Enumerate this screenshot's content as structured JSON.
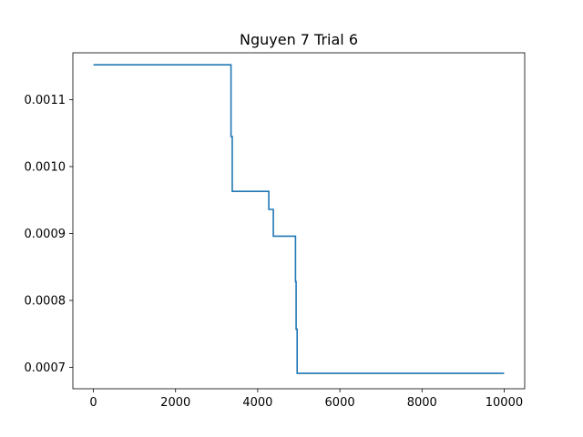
{
  "chart_data": {
    "type": "line",
    "title": "Nguyen 7 Trial 6",
    "xlabel": "",
    "ylabel": "",
    "xlim": [
      -500,
      10500
    ],
    "ylim": [
      0.000668,
      0.00117
    ],
    "x_ticks": [
      0,
      2000,
      4000,
      6000,
      8000,
      10000
    ],
    "x_tick_labels": [
      "0",
      "2000",
      "4000",
      "6000",
      "8000",
      "10000"
    ],
    "y_ticks": [
      0.0007,
      0.0008,
      0.0009,
      0.001,
      0.0011
    ],
    "y_tick_labels": [
      "0.0007",
      "0.0008",
      "0.0009",
      "0.0010",
      "0.0011"
    ],
    "grid": false,
    "series": [
      {
        "color": "#1f77b4",
        "x": [
          0,
          3350,
          3350,
          3380,
          3380,
          4270,
          4270,
          4380,
          4380,
          4920,
          4920,
          4935,
          4935,
          4960,
          4960,
          10000
        ],
        "y": [
          0.001152,
          0.001152,
          0.001045,
          0.001045,
          0.000963,
          0.000963,
          0.000936,
          0.000936,
          0.000896,
          0.000896,
          0.000828,
          0.000828,
          0.000757,
          0.000757,
          0.000691,
          0.000691
        ]
      }
    ]
  }
}
